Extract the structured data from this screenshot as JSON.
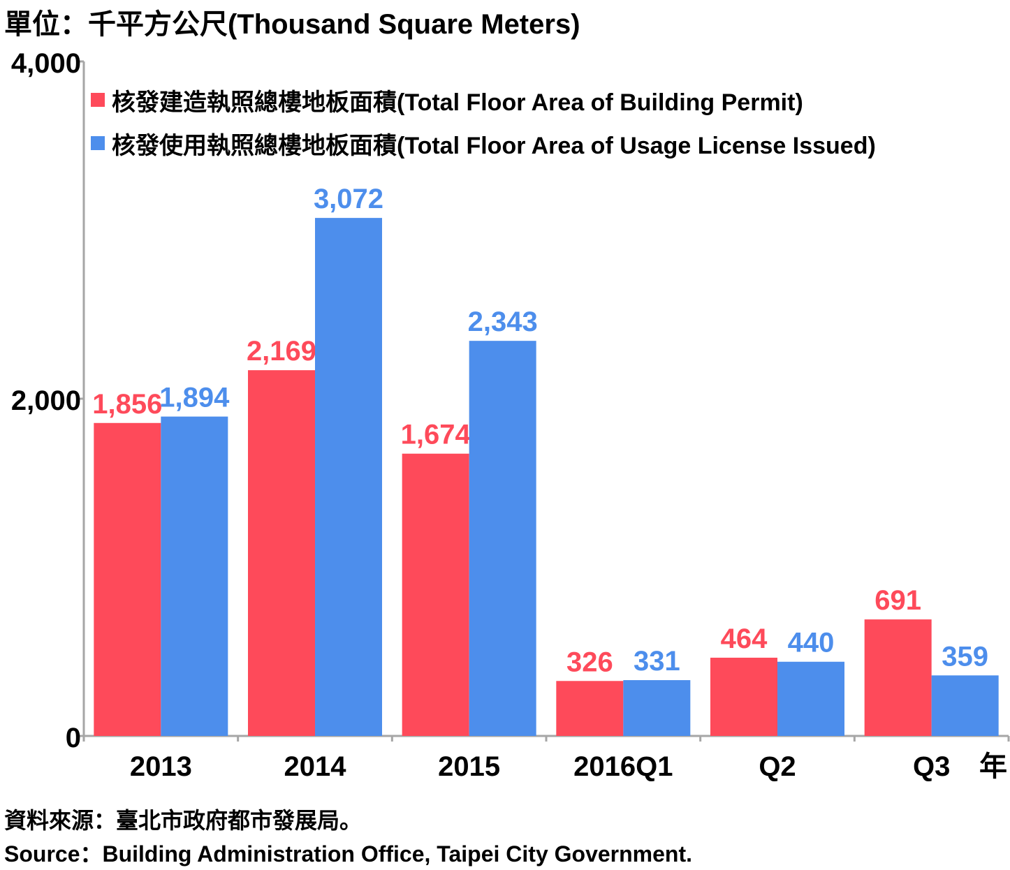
{
  "unit_label": "單位：千平方公尺(Thousand Square Meters)",
  "source_zh": "資料來源：臺北市政府都市發展局。",
  "source_en": "Source：Building Administration Office, Taipei City Government.",
  "chart_data": {
    "type": "bar",
    "categories": [
      "2013",
      "2014",
      "2015",
      "2016Q1",
      "Q2",
      "Q3"
    ],
    "x_axis_suffix": "年",
    "series": [
      {
        "name": "核發建造執照總樓地板面積(Total Floor Area of Building Permit)",
        "color": "#fe4a5a",
        "values": [
          1856,
          2169,
          1674,
          326,
          464,
          691
        ],
        "labels": [
          "1,856",
          "2,169",
          "1,674",
          "326",
          "464",
          "691"
        ]
      },
      {
        "name": "核發使用執照總樓地板面積(Total Floor Area of Usage License Issued)",
        "color": "#4d8eec",
        "values": [
          1894,
          3072,
          2343,
          331,
          440,
          359
        ],
        "labels": [
          "1,894",
          "3,072",
          "2,343",
          "331",
          "440",
          "359"
        ]
      }
    ],
    "ylim": [
      0,
      4000
    ],
    "yticks": [
      0,
      2000,
      4000
    ],
    "ytick_labels": [
      "0",
      "2,000",
      "4,000"
    ],
    "grid": false,
    "legend_position": "top-left"
  }
}
